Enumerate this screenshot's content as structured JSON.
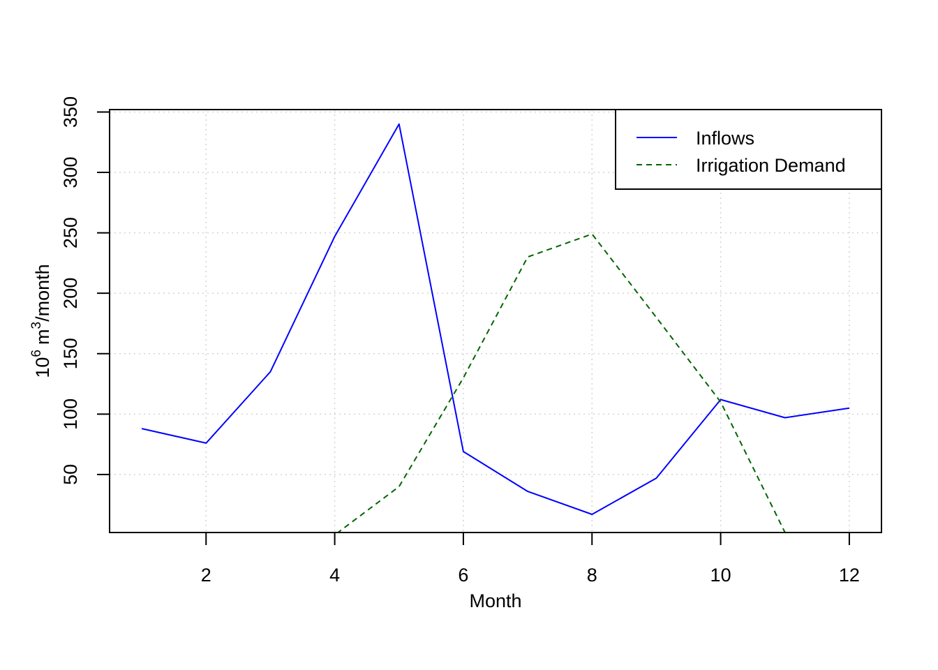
{
  "chart_data": {
    "type": "line",
    "title": "",
    "xlabel": "Month",
    "ylabel": {
      "base": "10",
      "exp1": "6",
      "unit": "m",
      "exp2": "3",
      "rest": "/month"
    },
    "xlim": [
      0.5,
      12.5
    ],
    "ylim": [
      2,
      352
    ],
    "xticks": [
      2,
      4,
      6,
      8,
      10,
      12
    ],
    "yticks": [
      50,
      100,
      150,
      200,
      250,
      300,
      350
    ],
    "grid": true,
    "legend_position": "top-right",
    "x": [
      1,
      2,
      3,
      4,
      5,
      6,
      7,
      8,
      9,
      10,
      11,
      12
    ],
    "series": [
      {
        "name": "Inflows",
        "color": "#0000ff",
        "dash": "solid",
        "values": [
          88,
          76,
          135,
          247,
          340,
          69,
          36,
          17,
          47,
          112,
          97,
          105
        ]
      },
      {
        "name": "Irrigation Demand",
        "color": "#006400",
        "dash": "dashed",
        "values": [
          0,
          0,
          0,
          0,
          40,
          130,
          230,
          249,
          180,
          110,
          2,
          0
        ]
      }
    ]
  }
}
